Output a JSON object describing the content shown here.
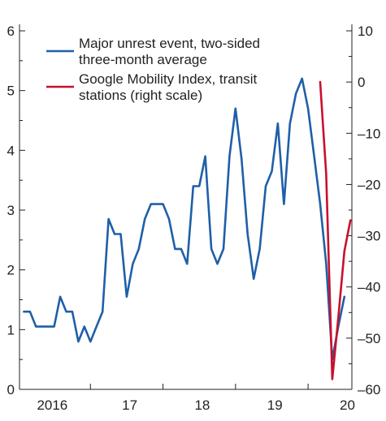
{
  "chart_data": {
    "type": "line",
    "title": "",
    "xlabel": "",
    "ylabel": "",
    "x_tick_labels": [
      "2016",
      "17",
      "18",
      "19",
      "20"
    ],
    "left_axis": {
      "ylim": [
        0,
        6
      ],
      "tick_labels": [
        "0",
        "1",
        "2",
        "3",
        "4",
        "5",
        "6"
      ]
    },
    "right_axis": {
      "ylim": [
        -60,
        10
      ],
      "tick_labels": [
        "10",
        "0",
        "–10",
        "–20",
        "–30",
        "–40",
        "–50",
        "–60"
      ]
    },
    "legend": {
      "placement": "top-left"
    },
    "series": [
      {
        "name_lines": [
          "Major unrest event, two-sided",
          "three-month average"
        ],
        "axis": "left",
        "color": "#1f5fa8",
        "points": [
          [
            "2016-01",
            1.3
          ],
          [
            "2016-02",
            1.3
          ],
          [
            "2016-03",
            1.05
          ],
          [
            "2016-04",
            1.05
          ],
          [
            "2016-05",
            1.05
          ],
          [
            "2016-06",
            1.05
          ],
          [
            "2016-07",
            1.55
          ],
          [
            "2016-08",
            1.3
          ],
          [
            "2016-09",
            1.3
          ],
          [
            "2016-10",
            0.8
          ],
          [
            "2016-11",
            1.05
          ],
          [
            "2016-12",
            0.8
          ],
          [
            "2017-01",
            1.05
          ],
          [
            "2017-02",
            1.3
          ],
          [
            "2017-03",
            2.85
          ],
          [
            "2017-04",
            2.6
          ],
          [
            "2017-05",
            2.6
          ],
          [
            "2017-06",
            1.55
          ],
          [
            "2017-07",
            2.1
          ],
          [
            "2017-08",
            2.35
          ],
          [
            "2017-09",
            2.85
          ],
          [
            "2017-10",
            3.1
          ],
          [
            "2017-11",
            3.1
          ],
          [
            "2017-12",
            3.1
          ],
          [
            "2018-01",
            2.85
          ],
          [
            "2018-02",
            2.35
          ],
          [
            "2018-03",
            2.35
          ],
          [
            "2018-04",
            2.1
          ],
          [
            "2018-05",
            3.4
          ],
          [
            "2018-06",
            3.4
          ],
          [
            "2018-07",
            3.9
          ],
          [
            "2018-08",
            2.35
          ],
          [
            "2018-09",
            2.1
          ],
          [
            "2018-10",
            2.35
          ],
          [
            "2018-11",
            3.9
          ],
          [
            "2018-12",
            4.7
          ],
          [
            "2019-01",
            3.85
          ],
          [
            "2019-02",
            2.6
          ],
          [
            "2019-03",
            1.85
          ],
          [
            "2019-04",
            2.35
          ],
          [
            "2019-05",
            3.4
          ],
          [
            "2019-06",
            3.65
          ],
          [
            "2019-07",
            4.45
          ],
          [
            "2019-08",
            3.1
          ],
          [
            "2019-09",
            4.45
          ],
          [
            "2019-10",
            4.95
          ],
          [
            "2019-11",
            5.2
          ],
          [
            "2019-12",
            4.7
          ],
          [
            "2020-01",
            3.9
          ],
          [
            "2020-02",
            3.1
          ],
          [
            "2020-03",
            2.1
          ],
          [
            "2020-04",
            0.5
          ],
          [
            "2020-05",
            1.05
          ],
          [
            "2020-06",
            1.55
          ]
        ]
      },
      {
        "name_lines": [
          "Google Mobility Index, transit",
          "stations (right scale)"
        ],
        "axis": "right",
        "color": "#c8102e",
        "points": [
          [
            "2020-02",
            0
          ],
          [
            "2020-03",
            -18
          ],
          [
            "2020-04",
            -58
          ],
          [
            "2020-05",
            -46
          ],
          [
            "2020-06",
            -33
          ],
          [
            "2020-07",
            -27
          ]
        ]
      }
    ]
  }
}
